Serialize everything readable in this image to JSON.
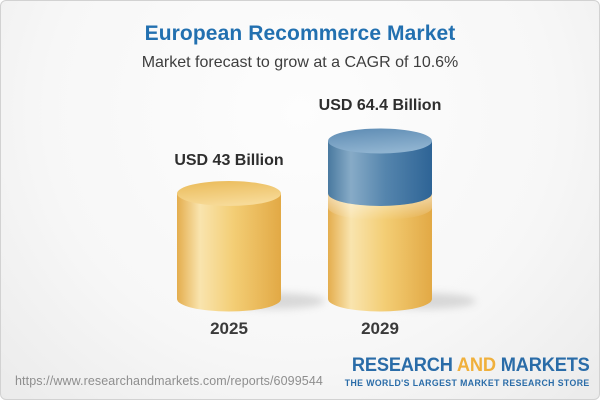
{
  "header": {
    "title": "European Recommerce Market",
    "subtitle": "Market forecast to grow at a CAGR of 10.6%"
  },
  "colors": {
    "title_blue": "#2270b0",
    "subtitle_gray": "#3e3e3e",
    "cylinder_gold": "#f2c566",
    "cylinder_blue": "#5586ae",
    "label_dark": "#2e2e2e",
    "url_gray": "#8e8e8e",
    "logo_blue": "#2a6ca8",
    "logo_gold": "#f0b03c"
  },
  "chart_data": {
    "type": "bar",
    "subtype": "stacked-3d-cylinder",
    "title": "European Recommerce Market",
    "subtitle": "Market forecast to grow at a CAGR of 10.6%",
    "cagr_percent": 10.6,
    "unit": "USD Billion",
    "categories": [
      "2025",
      "2029"
    ],
    "values": [
      43,
      64.4
    ],
    "value_labels": [
      "USD 43 Billion",
      "USD 64.4 Billion"
    ],
    "ylim": [
      0,
      64.4
    ],
    "grid": false,
    "legend": false,
    "bars": [
      {
        "category": "2025",
        "total": 43,
        "segments": [
          {
            "value": 43,
            "color_key": "gold"
          }
        ]
      },
      {
        "category": "2029",
        "total": 64.4,
        "segments": [
          {
            "value": 43,
            "color_key": "gold"
          },
          {
            "value": 21.4,
            "color_key": "blue"
          }
        ]
      }
    ]
  },
  "footer": {
    "url": "https://www.researchandmarkets.com/reports/6099544",
    "logo": {
      "research": "RESEARCH",
      "and": "AND",
      "markets": "MARKETS",
      "tagline": "THE WORLD'S LARGEST MARKET RESEARCH STORE"
    }
  }
}
